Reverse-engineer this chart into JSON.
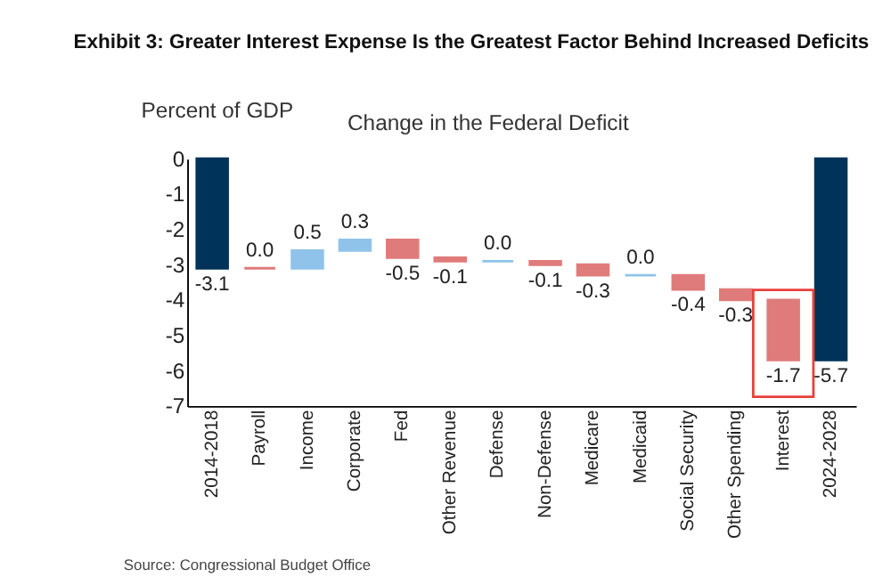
{
  "chart_data": {
    "type": "bar",
    "title": "Exhibit 3: Greater Interest Expense Is the Greatest Factor Behind Increased Deficits",
    "subtitle": "Change in the Federal Deficit",
    "ylabel": "Percent of GDP",
    "categories": [
      "2014-2018",
      "Payroll",
      "Income",
      "Corporate",
      "Fed",
      "Other Revenue",
      "Defense",
      "Non-Defense",
      "Medicare",
      "Medicaid",
      "Social Security",
      "Other Spending",
      "Interest",
      "2024-2028"
    ],
    "values": [
      -3.1,
      0.0,
      0.5,
      0.3,
      -0.5,
      -0.1,
      0.0,
      -0.1,
      -0.3,
      0.0,
      -0.4,
      -0.3,
      -1.7,
      -5.7
    ],
    "base": [
      0,
      -3.1,
      -3.1,
      -2.6,
      -2.3,
      -2.8,
      -2.9,
      -2.9,
      -3.0,
      -3.3,
      -3.3,
      -3.7,
      -4.0,
      0
    ],
    "colors": [
      "#003359",
      "#e07b7b",
      "#8fc3ea",
      "#8fc3ea",
      "#e07b7b",
      "#e07b7b",
      "#8fc3ea",
      "#e07b7b",
      "#e07b7b",
      "#8fc3ea",
      "#e07b7b",
      "#e07b7b",
      "#e07b7b",
      "#003359"
    ],
    "value_labels": [
      "-3.1",
      "0.0",
      "0.5",
      "0.3",
      "-0.5",
      "-0.1",
      "0.0",
      "-0.1",
      "-0.3",
      "0.0",
      "-0.4",
      "-0.3",
      "-1.7",
      "-5.7"
    ],
    "ylim": [
      -7,
      0
    ],
    "yticks": [
      0,
      -1,
      -2,
      -3,
      -4,
      -5,
      -6,
      -7
    ],
    "annotations": [
      "Source: Congressional Budget Office"
    ]
  }
}
